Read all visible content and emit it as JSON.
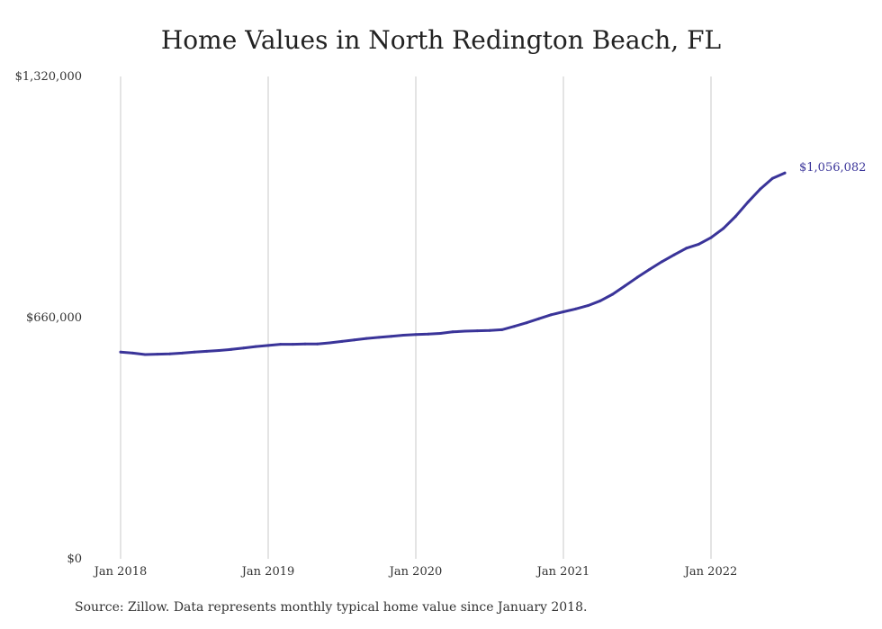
{
  "chart_data": {
    "type": "line",
    "title": "Home Values in North Redington Beach, FL",
    "source": "Source: Zillow. Data represents monthly typical home value since January 2018.",
    "xlabel": "",
    "ylabel": "",
    "ylim": [
      0,
      1320000
    ],
    "y_ticks": [
      {
        "value": 0,
        "label": "$0"
      },
      {
        "value": 660000,
        "label": "$660,000"
      },
      {
        "value": 1320000,
        "label": "$1,320,000"
      }
    ],
    "x_ticks": [
      {
        "date": "2018-01",
        "label": "Jan 2018"
      },
      {
        "date": "2019-01",
        "label": "Jan 2019"
      },
      {
        "date": "2020-01",
        "label": "Jan 2020"
      },
      {
        "date": "2021-01",
        "label": "Jan 2021"
      },
      {
        "date": "2022-01",
        "label": "Jan 2022"
      }
    ],
    "grid": {
      "vertical": true,
      "horizontal": false
    },
    "line_color": "#3a3499",
    "end_label": "$1,056,082",
    "series": [
      {
        "x": [
          "2018-01",
          "2018-02",
          "2018-03",
          "2018-04",
          "2018-05",
          "2018-06",
          "2018-07",
          "2018-08",
          "2018-09",
          "2018-10",
          "2018-11",
          "2018-12",
          "2019-01",
          "2019-02",
          "2019-03",
          "2019-04",
          "2019-05",
          "2019-06",
          "2019-07",
          "2019-08",
          "2019-09",
          "2019-10",
          "2019-11",
          "2019-12",
          "2020-01",
          "2020-02",
          "2020-03",
          "2020-04",
          "2020-05",
          "2020-06",
          "2020-07",
          "2020-08",
          "2020-09",
          "2020-10",
          "2020-11",
          "2020-12",
          "2021-01",
          "2021-02",
          "2021-03",
          "2021-04",
          "2021-05",
          "2021-06",
          "2021-07",
          "2021-08",
          "2021-09",
          "2021-10",
          "2021-11",
          "2021-12",
          "2022-01",
          "2022-02",
          "2022-03",
          "2022-04",
          "2022-05",
          "2022-06",
          "2022-07"
        ],
        "values": [
          566000,
          563000,
          559000,
          560000,
          561000,
          563000,
          566000,
          568000,
          570000,
          573000,
          577000,
          581000,
          584000,
          587000,
          587000,
          588000,
          588000,
          591000,
          595000,
          599000,
          603000,
          606000,
          609000,
          612000,
          614000,
          615000,
          617000,
          621000,
          623000,
          624000,
          625000,
          627000,
          636000,
          646000,
          657000,
          668000,
          676000,
          684000,
          693000,
          706000,
          724000,
          747000,
          770000,
          792000,
          813000,
          832000,
          850000,
          861000,
          879000,
          904000,
          937000,
          976000,
          1012000,
          1041000,
          1056082
        ]
      }
    ]
  }
}
